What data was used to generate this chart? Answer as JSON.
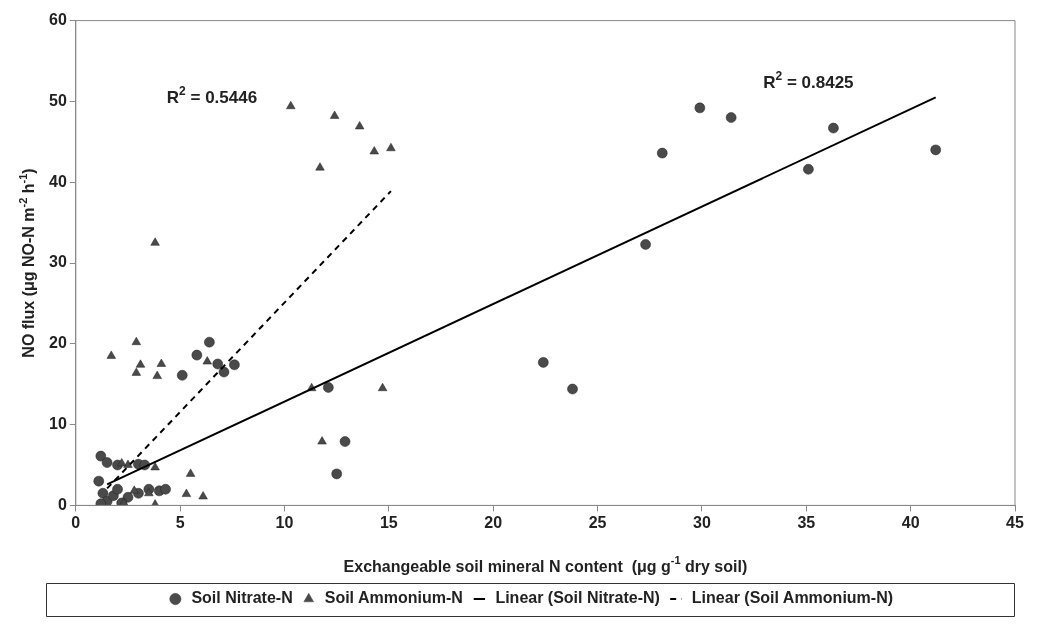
{
  "chart_data": {
    "type": "scatter",
    "xlabel": "Exchangeable soil mineral N content  (μg g$^{-1}$ dry soil)",
    "ylabel": "NO flux (μg NO-N m$^{-2}$ h$^{-1}$)",
    "xlim": [
      0,
      45
    ],
    "xticks": [
      0,
      5,
      10,
      15,
      20,
      25,
      30,
      35,
      40,
      45
    ],
    "ylim": [
      0,
      60
    ],
    "yticks": [
      0,
      10,
      20,
      30,
      40,
      50,
      60
    ],
    "grid": false,
    "legend": "bottom",
    "series": [
      {
        "name": "Soil Nitrate-N",
        "type": "scatter",
        "marker": "circle",
        "color": "#4a4a4a",
        "x": [
          41.2,
          36.3,
          35.1,
          31.4,
          29.9,
          28.1,
          27.3,
          22.4,
          23.8,
          12.1,
          12.9,
          12.5,
          6.4,
          5.8,
          5.1,
          7.1,
          7.6,
          6.8,
          1.2,
          1.5,
          2,
          3,
          3.3,
          1.1,
          1.3,
          1.5,
          1.8,
          2,
          2.5,
          3,
          3.5,
          4,
          4.3,
          1.2,
          2.2
        ],
        "values": [
          44,
          46.7,
          41.6,
          48,
          49.2,
          43.6,
          32.3,
          17.7,
          14.4,
          14.6,
          7.9,
          3.9,
          20.2,
          18.6,
          16.1,
          16.5,
          17.4,
          17.5,
          6.1,
          5.3,
          5,
          5.1,
          5,
          3,
          1.5,
          0.5,
          1.2,
          2,
          1,
          1.5,
          2,
          1.8,
          2,
          0.2,
          0.3
        ]
      },
      {
        "name": "Soil Ammonium-N",
        "type": "scatter",
        "marker": "triangle",
        "color": "#4a4a4a",
        "x": [
          10.3,
          12.4,
          13.6,
          14.3,
          15.1,
          11.7,
          3.8,
          1.7,
          2.9,
          3.1,
          2.9,
          4.1,
          3.9,
          6.3,
          11.3,
          14.7,
          11.8,
          5.5,
          5.3,
          6.1,
          2.5,
          2.2,
          3.8,
          2.8,
          3.5,
          2.3,
          3.8
        ],
        "values": [
          49.4,
          48.2,
          46.9,
          43.8,
          44.2,
          41.8,
          32.5,
          18.5,
          20.2,
          17.4,
          16.4,
          17.5,
          16,
          17.8,
          14.5,
          14.5,
          7.9,
          3.9,
          1.4,
          1.1,
          5,
          5.2,
          4.7,
          1.8,
          1.5,
          0.3,
          0.1
        ]
      },
      {
        "name": "Linear (Soil Nitrate-N)",
        "type": "line",
        "marker": "none",
        "line_style": "solid",
        "color": "#000000",
        "x": [
          1.5,
          41.2
        ],
        "values": [
          2.6,
          50.5
        ]
      },
      {
        "name": "Linear (Soil Ammonium-N)",
        "type": "line",
        "marker": "none",
        "line_style": "dashed",
        "color": "#000000",
        "x": [
          1.5,
          15.1
        ],
        "values": [
          2.1,
          38.9
        ]
      }
    ],
    "annotations": [
      "R$^{2}$ = 0.5446",
      "R$^{2}$ = 0.8425"
    ]
  }
}
